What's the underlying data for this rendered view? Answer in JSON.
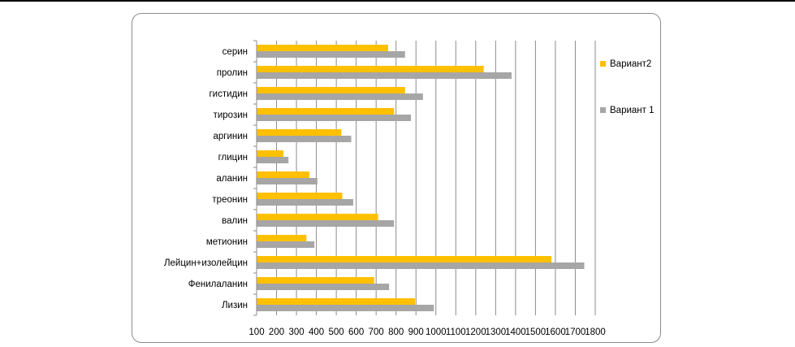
{
  "chart_data": {
    "type": "bar",
    "orientation": "horizontal",
    "categories": [
      "серин",
      "пролин",
      "гистидин",
      "тирозин",
      "аргинин",
      "глицин",
      "аланин",
      "треонин",
      "валин",
      "метионин",
      "Лейцин+изолейцин",
      "Фенилаланин",
      "Лизин"
    ],
    "series": [
      {
        "name": "Вариант2",
        "color": "#FFC000",
        "values": [
          760,
          1240,
          845,
          790,
          525,
          235,
          365,
          530,
          710,
          350,
          1580,
          690,
          895
        ]
      },
      {
        "name": "Вариант 1",
        "color": "#A6A6A6",
        "values": [
          845,
          1380,
          935,
          875,
          575,
          260,
          405,
          585,
          790,
          390,
          1745,
          765,
          990
        ]
      }
    ],
    "xlim": [
      100,
      1800
    ],
    "xticks": [
      "100",
      "200",
      "300",
      "400",
      "500",
      "600",
      "700",
      "800",
      "900",
      "1000",
      "1100",
      "1200",
      "1300",
      "1400",
      "1500",
      "1600",
      "1700",
      "1800"
    ],
    "grid": "vertical",
    "legend": "right"
  }
}
